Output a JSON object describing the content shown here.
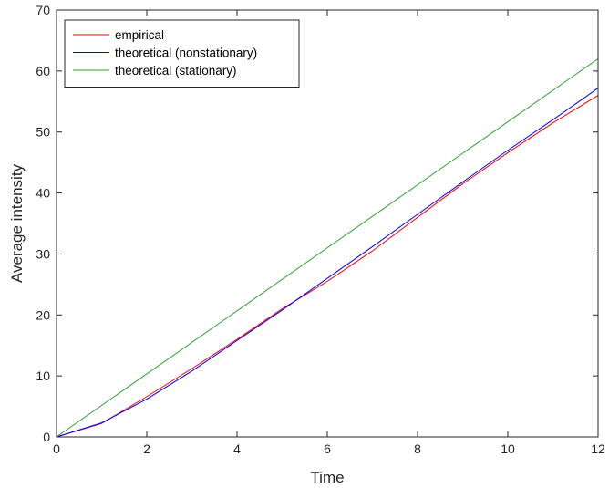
{
  "chart_data": {
    "type": "line",
    "xlabel": "Time",
    "ylabel": "Average intensity",
    "xlim": [
      0,
      12
    ],
    "ylim": [
      0,
      70
    ],
    "xticks": [
      0,
      2,
      4,
      6,
      8,
      10,
      12
    ],
    "yticks": [
      0,
      10,
      20,
      30,
      40,
      50,
      60,
      70
    ],
    "grid": false,
    "legend_position": "top-left",
    "series": [
      {
        "name": "empirical",
        "color": "#ff0000",
        "x": [
          0,
          1,
          2,
          3,
          4,
          5,
          6,
          7,
          8,
          9,
          10,
          11,
          12
        ],
        "y": [
          0,
          2.2,
          6.6,
          11.2,
          16.0,
          21.0,
          25.5,
          30.5,
          36.0,
          41.5,
          46.6,
          51.5,
          56.0
        ]
      },
      {
        "name": "theoretical (nonstationary)",
        "color": "#0000ff",
        "x": [
          0,
          1,
          2,
          3,
          4,
          5,
          6,
          7,
          8,
          9,
          10,
          11,
          12
        ],
        "y": [
          0,
          2.3,
          6.2,
          10.8,
          15.8,
          20.8,
          26.0,
          31.2,
          36.5,
          41.8,
          47.0,
          52.0,
          57.2
        ]
      },
      {
        "name": "theoretical (stationary)",
        "color": "#2ca02c",
        "x": [
          0,
          12
        ],
        "y": [
          0,
          62.0
        ]
      }
    ]
  }
}
